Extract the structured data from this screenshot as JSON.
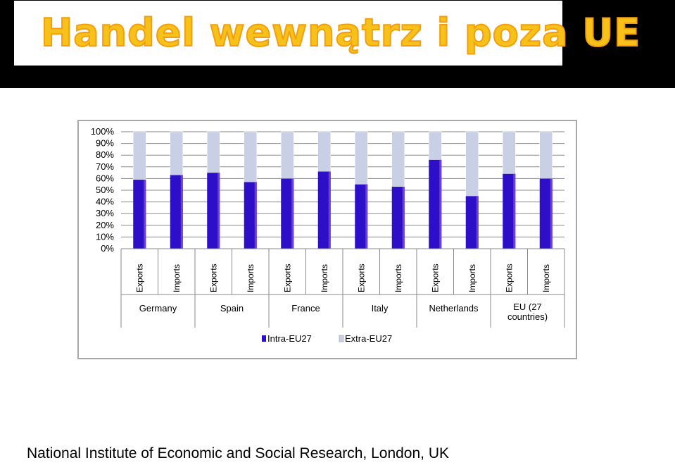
{
  "header": {
    "title": "Handel wewnątrz i poza UE",
    "title_color": "#f6c21a"
  },
  "chart_data": {
    "type": "bar",
    "stacked": true,
    "percent_stacked": true,
    "groups": [
      "Germany",
      "Spain",
      "France",
      "Italy",
      "Netherlands",
      "EU (27 countries)"
    ],
    "categories": [
      "Exports",
      "Imports",
      "Exports",
      "Imports",
      "Exports",
      "Imports",
      "Exports",
      "Imports",
      "Exports",
      "Imports",
      "Exports",
      "Imports"
    ],
    "series": [
      {
        "name": "Intra-EU27",
        "color": "#2e0fc8",
        "values": [
          59,
          63,
          65,
          57,
          60,
          66,
          55,
          53,
          76,
          45,
          64,
          60
        ]
      },
      {
        "name": "Extra-EU27",
        "color": "#c9cfe4",
        "values": [
          41,
          37,
          35,
          43,
          40,
          34,
          45,
          47,
          24,
          55,
          36,
          40
        ]
      }
    ],
    "yticks": [
      "0%",
      "10%",
      "20%",
      "30%",
      "40%",
      "50%",
      "60%",
      "70%",
      "80%",
      "90%",
      "100%"
    ],
    "ylim": [
      0,
      100
    ],
    "grid": true,
    "legend_position": "bottom"
  },
  "footer": {
    "source": "National Institute of Economic and Social Research, London, UK"
  }
}
